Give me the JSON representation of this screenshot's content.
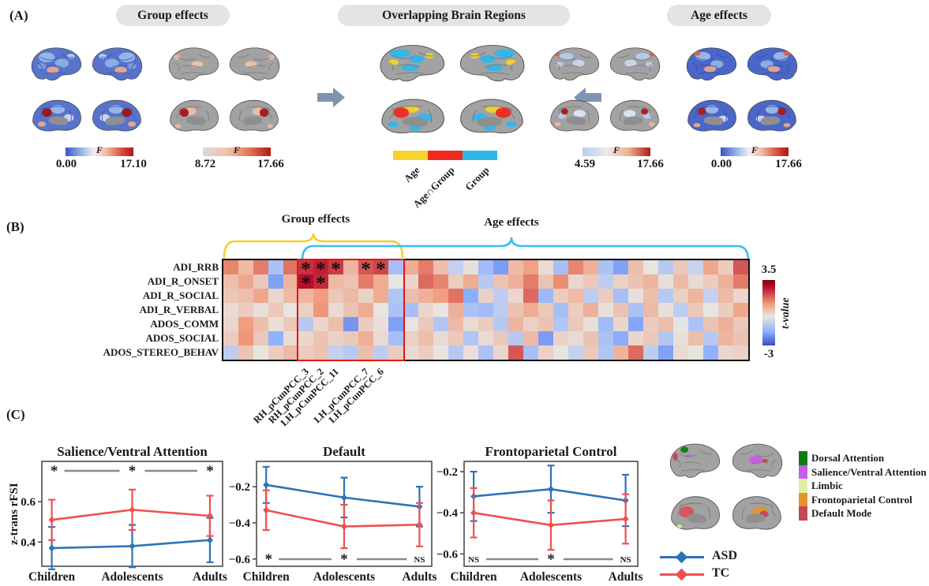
{
  "panel_a": {
    "label": "(A)",
    "sections": [
      {
        "title": "Group effects"
      },
      {
        "title": "Overlapping Brain Regions"
      },
      {
        "title": "Age effects"
      }
    ],
    "colorbars": [
      {
        "label": "F",
        "min": "0.00",
        "max": "17.10"
      },
      {
        "label": "F",
        "min": "8.72",
        "max": "17.66"
      },
      {
        "label": "F",
        "min": "4.59",
        "max": "17.66"
      },
      {
        "label": "F",
        "min": "0.00",
        "max": "17.66"
      }
    ],
    "overlap_legend": [
      {
        "label": "Age",
        "color": "#f6d32e"
      },
      {
        "label": "Age∩Group",
        "color": "#ee2a1e"
      },
      {
        "label": "Group",
        "color": "#2fb7ea"
      }
    ]
  },
  "panel_b": {
    "label": "(B)",
    "group_brace_label": "Group effects",
    "age_brace_label": "Age effects",
    "brace_colors": {
      "group": "#f2cf2e",
      "age": "#3bbdf0"
    },
    "colorbar": {
      "max": "3.5",
      "min": "-3",
      "label": "t-value"
    }
  },
  "panel_c": {
    "label": "(C)",
    "ylabel": "z-trans rFSI",
    "network_legend": [
      {
        "label": "Dorsal Attention",
        "color": "#0d7d12"
      },
      {
        "label": "Salience/Ventral Attention",
        "color": "#cb5ce8"
      },
      {
        "label": "Limbic",
        "color": "#dff0a5"
      },
      {
        "label": "Frontoparietal Control",
        "color": "#e2932e"
      },
      {
        "label": "Default Mode",
        "color": "#c24854"
      }
    ],
    "series_legend": [
      {
        "label": "ASD",
        "color": "#2e73b8"
      },
      {
        "label": "TC",
        "color": "#f0504f"
      }
    ]
  },
  "chart_data": [
    {
      "type": "heatmap",
      "title": "",
      "rows": [
        "ADI_RRB",
        "ADI_R_ONSET",
        "ADI_R_SOCIAL",
        "ADI_R_VERBAL",
        "ADOS_COMM",
        "ADOS_SOCIAL",
        "ADOS_STEREO_BEHAV"
      ],
      "n_cols": 35,
      "col_labels": [
        {
          "index": 5,
          "label": "RH_pCunPCC_3"
        },
        {
          "index": 6,
          "label": "RH_pCunPCC_2"
        },
        {
          "index": 7,
          "label": "LH_pCunPCC_11"
        },
        {
          "index": 9,
          "label": "LH_pCunPCC_7"
        },
        {
          "index": 10,
          "label": "LH_pCunPCC_6"
        }
      ],
      "values": [
        [
          2.1,
          1.2,
          2.2,
          -0.8,
          2.3,
          3.0,
          3.2,
          2.9,
          1.3,
          2.6,
          2.8,
          -0.9,
          1.5,
          2.2,
          1.1,
          -0.4,
          0.4,
          -1.0,
          -1.7,
          1.2,
          1.7,
          0.5,
          -0.9,
          2.1,
          1.4,
          -0.8,
          -1.6,
          1.1,
          0.3,
          -0.6,
          0.9,
          -0.3,
          1.6,
          0.8,
          2.6
        ],
        [
          1.1,
          1.6,
          0.9,
          -1.6,
          1.3,
          3.4,
          3.1,
          1.2,
          1.0,
          2.2,
          1.5,
          0.3,
          0.6,
          2.4,
          2.1,
          0.8,
          1.5,
          -0.6,
          1.0,
          1.4,
          2.2,
          1.0,
          2.0,
          0.6,
          0.9,
          -0.5,
          0.7,
          1.0,
          1.3,
          0.4,
          1.2,
          0.5,
          0.8,
          1.4,
          2.2
        ],
        [
          0.9,
          1.1,
          1.6,
          0.6,
          1.2,
          1.3,
          1.8,
          0.9,
          1.2,
          0.7,
          1.5,
          -0.7,
          1.1,
          1.4,
          1.8,
          2.3,
          -1.4,
          0.7,
          -0.5,
          0.6,
          2.4,
          -1.1,
          0.8,
          1.2,
          -0.5,
          0.8,
          -0.9,
          0.4,
          1.1,
          -0.6,
          0.7,
          1.3,
          -0.4,
          1.2,
          0.6
        ],
        [
          0.5,
          0.8,
          0.4,
          0.9,
          0.3,
          0.7,
          1.9,
          0.5,
          1.0,
          1.5,
          0.3,
          -0.8,
          -0.9,
          0.6,
          0.3,
          1.4,
          -0.8,
          -1.0,
          -0.5,
          1.0,
          1.5,
          0.9,
          -0.9,
          0.8,
          1.4,
          0.4,
          1.0,
          -0.8,
          1.2,
          0.4,
          -0.5,
          0.9,
          0.3,
          0.8,
          1.6
        ],
        [
          0.6,
          1.8,
          1.1,
          0.4,
          0.9,
          -0.6,
          0.6,
          1.1,
          -1.8,
          0.8,
          0.4,
          -1.6,
          0.3,
          0.9,
          -0.7,
          1.2,
          0.5,
          0.8,
          -0.6,
          1.3,
          0.7,
          1.0,
          -0.7,
          0.9,
          0.4,
          -1.0,
          0.6,
          -1.5,
          0.8,
          1.1,
          0.2,
          -0.8,
          1.0,
          1.4,
          0.9
        ],
        [
          0.8,
          1.9,
          0.9,
          -1.3,
          0.5,
          0.6,
          1.0,
          0.7,
          0.9,
          1.4,
          0.5,
          -0.9,
          0.7,
          1.1,
          0.5,
          0.9,
          -0.7,
          0.5,
          0.9,
          -0.6,
          1.2,
          -1.7,
          0.7,
          0.5,
          1.0,
          -0.8,
          -1.4,
          0.6,
          0.9,
          -0.7,
          0.4,
          1.1,
          -0.6,
          1.3,
          1.0
        ],
        [
          -0.5,
          1.0,
          0.3,
          0.8,
          1.2,
          0.8,
          1.0,
          -0.4,
          -0.6,
          1.1,
          -0.5,
          0.8,
          0.5,
          0.8,
          0.3,
          -0.6,
          0.4,
          -0.8,
          0.6,
          2.6,
          -0.9,
          0.7,
          0.3,
          -0.4,
          0.9,
          -0.7,
          1.3,
          2.4,
          -0.5,
          -1.6,
          0.5,
          0.3,
          -1.3,
          0.6,
          0.7
        ]
      ],
      "significant": [
        [
          0,
          5
        ],
        [
          0,
          6
        ],
        [
          0,
          7
        ],
        [
          0,
          9
        ],
        [
          0,
          10
        ],
        [
          1,
          5
        ],
        [
          1,
          6
        ]
      ],
      "sig_marker": "*",
      "highlight_cols": [
        5,
        11
      ],
      "group_cols": [
        0,
        11
      ],
      "age_cols": [
        5,
        34
      ],
      "vmin": -3,
      "vmax": 3.5,
      "colorbar_label": "t-value"
    },
    {
      "type": "line",
      "title": "Salience/Ventral Attention",
      "categories": [
        "Children",
        "Adolescents",
        "Adults"
      ],
      "ylim": [
        0.28,
        0.8
      ],
      "yticks": [
        0.4,
        0.6
      ],
      "series": [
        {
          "name": "ASD",
          "color": "#2e73b8",
          "values": [
            0.37,
            0.38,
            0.41
          ],
          "err": [
            0.105,
            0.105,
            0.11
          ]
        },
        {
          "name": "TC",
          "color": "#f0504f",
          "values": [
            0.51,
            0.56,
            0.53
          ],
          "err": [
            0.1,
            0.1,
            0.1
          ]
        }
      ],
      "sig": {
        "position": "top",
        "labels": [
          "*",
          "*",
          "*"
        ]
      }
    },
    {
      "type": "line",
      "title": "Default",
      "categories": [
        "Children",
        "Adolescents",
        "Adults"
      ],
      "ylim": [
        -0.64,
        -0.06
      ],
      "yticks": [
        -0.2,
        -0.4,
        -0.6
      ],
      "series": [
        {
          "name": "ASD",
          "color": "#2e73b8",
          "values": [
            -0.19,
            -0.26,
            -0.31
          ],
          "err": [
            0.1,
            0.11,
            0.11
          ]
        },
        {
          "name": "TC",
          "color": "#f0504f",
          "values": [
            -0.33,
            -0.42,
            -0.41
          ],
          "err": [
            0.11,
            0.12,
            0.12
          ]
        }
      ],
      "sig": {
        "position": "bottom",
        "labels": [
          "*",
          "*",
          "NS"
        ]
      }
    },
    {
      "type": "line",
      "title": "Frontoparietal Control",
      "categories": [
        "Children",
        "Adolescents",
        "Adults"
      ],
      "ylim": [
        -0.66,
        -0.15
      ],
      "yticks": [
        -0.2,
        -0.4,
        -0.6
      ],
      "series": [
        {
          "name": "ASD",
          "color": "#2e73b8",
          "values": [
            -0.32,
            -0.285,
            -0.34
          ],
          "err": [
            0.12,
            0.115,
            0.125
          ]
        },
        {
          "name": "TC",
          "color": "#f0504f",
          "values": [
            -0.4,
            -0.46,
            -0.43
          ],
          "err": [
            0.12,
            0.12,
            0.12
          ]
        }
      ],
      "sig": {
        "position": "bottom",
        "labels": [
          "NS",
          "*",
          "NS"
        ]
      }
    }
  ]
}
